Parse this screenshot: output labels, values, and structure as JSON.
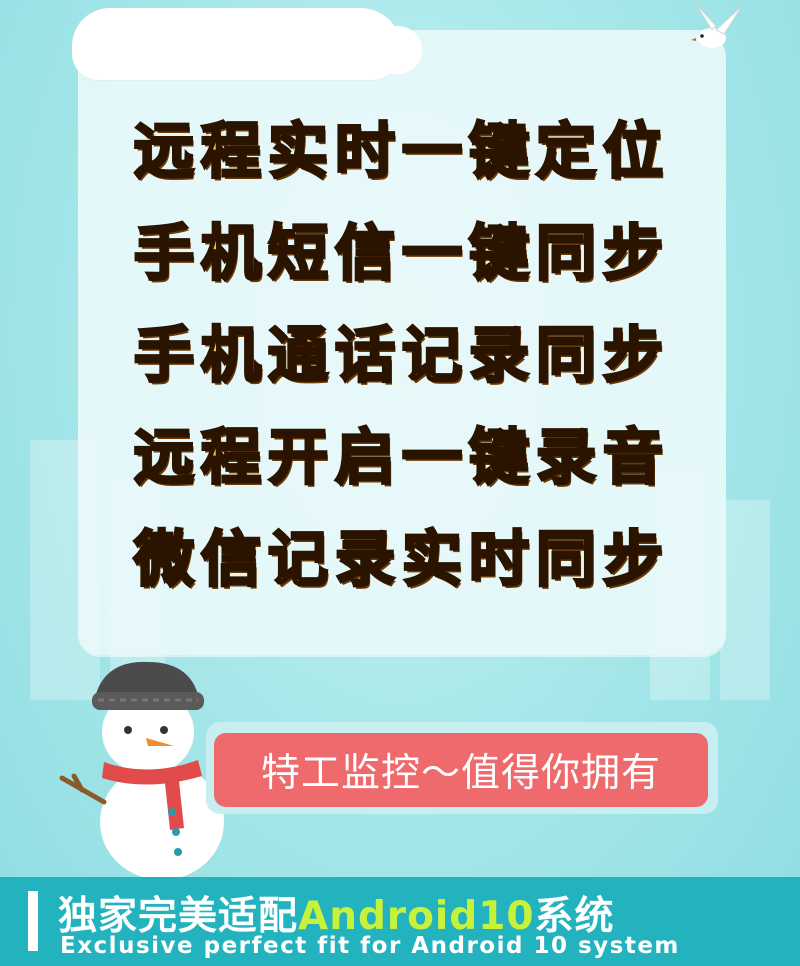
{
  "features": [
    "远程实时一键定位",
    "手机短信一键同步",
    "手机通话记录同步",
    "远程开启一键录音",
    "微信记录实时同步"
  ],
  "slogan": "特工监控～值得你拥有",
  "footer": {
    "title_prefix": "独家完美适配",
    "title_highlight": "Android10",
    "title_suffix": "系统",
    "subtitle": "Exclusive perfect fit for Android 10 system"
  },
  "colors": {
    "background": "#9fe3e6",
    "feature_text": "#ffc21a",
    "banner": "#ee6a6c",
    "footer": "#23b3be",
    "highlight": "#c7f23a"
  },
  "decor": [
    "snowman-illustration",
    "bird-icon",
    "snow-cap"
  ]
}
